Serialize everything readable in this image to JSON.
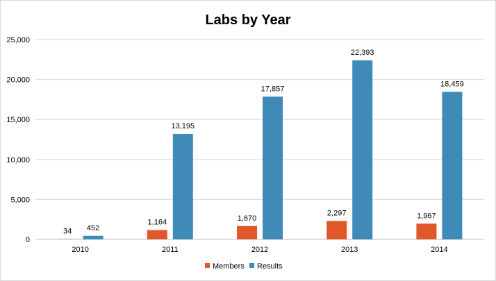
{
  "chart_data": {
    "type": "bar",
    "title": "Labs by Year",
    "categories": [
      "2010",
      "2011",
      "2012",
      "2013",
      "2014"
    ],
    "series": [
      {
        "name": "Members",
        "color": "#e0572a",
        "values": [
          34,
          1164,
          1670,
          2297,
          1967
        ]
      },
      {
        "name": "Results",
        "color": "#3f8ab7",
        "values": [
          452,
          13195,
          17857,
          22393,
          18459
        ]
      }
    ],
    "data_labels": {
      "Members": [
        "34",
        "1,164",
        "1,670",
        "2,297",
        "1,967"
      ],
      "Results": [
        "452",
        "13,195",
        "17,857",
        "22,393",
        "18,459"
      ]
    },
    "y_ticks": [
      "0",
      "5,000",
      "10,000",
      "15,000",
      "20,000",
      "25,000"
    ],
    "ylim": [
      0,
      25000
    ],
    "grid": true,
    "legend_position": "bottom"
  }
}
